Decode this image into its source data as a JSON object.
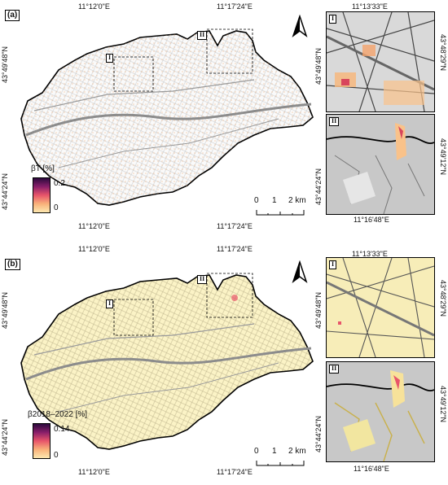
{
  "panels": [
    {
      "id": "a",
      "label": "(a)",
      "top_lon": [
        "11°12'0\"E",
        "11°17'24\"E"
      ],
      "bottom_lon": [
        "11°12'0\"E",
        "11°17'24\"E"
      ],
      "left_lat": [
        "43°49'48\"N",
        "43°44'24\"N"
      ],
      "inset_I": {
        "label": "I",
        "lon": "11°13'33\"E",
        "lat": "43°49'48\"N",
        "lat_right": "43°48'29\"N"
      },
      "inset_II": {
        "label": "II",
        "lon": "11°16'48\"E",
        "lat": "43°44'24\"N",
        "lat_right": "43°49'12\"N"
      },
      "legend": {
        "title": "βT [%]",
        "max": "0.2",
        "min": "0",
        "colors": [
          "#2b0a3d",
          "#8a1f6a",
          "#e8556a",
          "#f9b27a",
          "#fde8b0"
        ]
      },
      "scale": {
        "ticks": [
          "0",
          "1",
          "2 km"
        ]
      },
      "north": "N"
    },
    {
      "id": "b",
      "label": "(b)",
      "top_lon": [
        "11°12'0\"E",
        "11°17'24\"E"
      ],
      "bottom_lon": [
        "11°12'0\"E",
        "11°17'24\"E"
      ],
      "left_lat": [
        "43°49'48\"N",
        "43°44'24\"N"
      ],
      "inset_I": {
        "label": "I",
        "lon": "11°13'33\"E",
        "lat": "43°49'48\"N",
        "lat_right": "43°48'29\"N"
      },
      "inset_II": {
        "label": "II",
        "lon": "11°16'48\"E",
        "lat": "43°44'24\"N",
        "lat_right": "43°49'12\"N"
      },
      "legend": {
        "title": "β2018–2022 [%]",
        "max": "0.14",
        "min": "0",
        "colors": [
          "#2b0a3d",
          "#8a1f6a",
          "#e8556a",
          "#f9b27a",
          "#fde8b0"
        ]
      },
      "scale": {
        "ticks": [
          "0",
          "1",
          "2 km"
        ]
      },
      "north": "N"
    }
  ]
}
